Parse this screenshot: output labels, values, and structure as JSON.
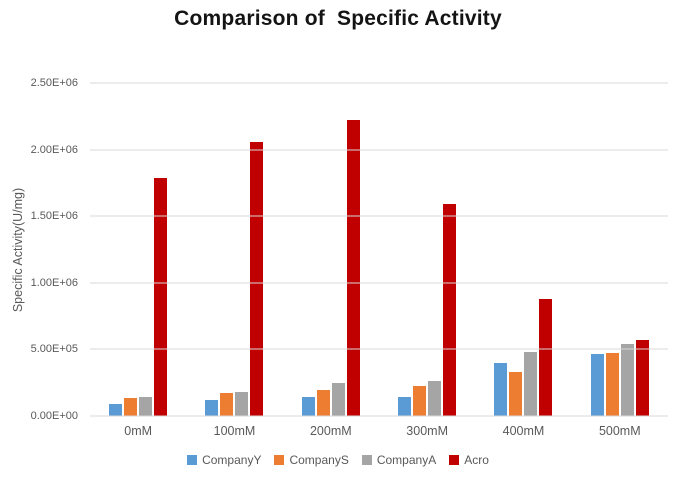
{
  "window": {
    "background": "#ffffff"
  },
  "colors": {
    "title_text": "#141414",
    "axis_text": "#595959",
    "gridline": "#d9d9d9",
    "series_blue": "#5B9BD5",
    "series_orange": "#ED7D31",
    "series_gray": "#A5A5A5",
    "series_red": "#C00000"
  },
  "chart_data": {
    "type": "bar",
    "title": "Comparison of  Specific Activity",
    "xlabel": "",
    "ylabel": "Specific Activity(U/mg)",
    "categories": [
      "0mM",
      "100mM",
      "200mM",
      "300mM",
      "400mM",
      "500mM"
    ],
    "series": [
      {
        "name": "CompanyY",
        "color": "#5B9BD5",
        "values": [
          90000,
          120000,
          140000,
          140000,
          395000,
          465000
        ]
      },
      {
        "name": "CompanyS",
        "color": "#ED7D31",
        "values": [
          135000,
          175000,
          198000,
          225000,
          330000,
          475000
        ]
      },
      {
        "name": "CompanyA",
        "color": "#A5A5A5",
        "values": [
          145000,
          182000,
          245000,
          260000,
          480000,
          540000
        ]
      },
      {
        "name": "Acro",
        "color": "#C00000",
        "values": [
          1790000,
          2060000,
          2220000,
          1590000,
          880000,
          570000
        ]
      }
    ],
    "ylim": [
      0,
      2500000
    ],
    "ytick_step": 500000,
    "yticks": [
      "0.00E+00",
      "5.00E+05",
      "1.00E+06",
      "1.50E+06",
      "2.00E+06",
      "2.50E+06"
    ],
    "grid": true,
    "legend_position": "bottom"
  }
}
